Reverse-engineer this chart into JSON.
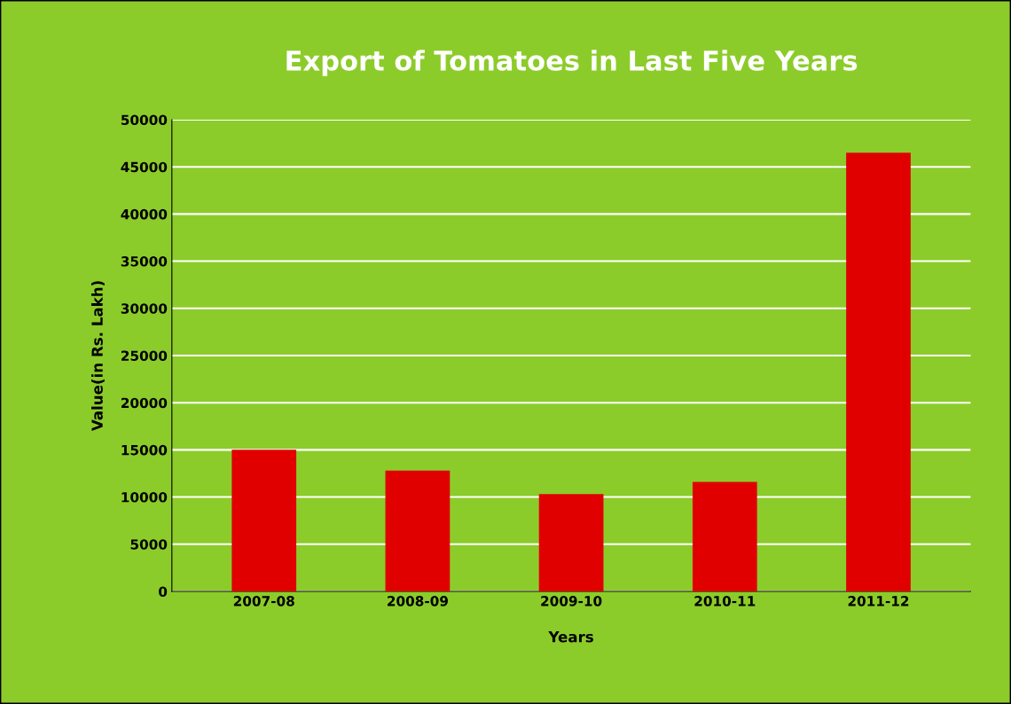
{
  "chart_data": {
    "type": "bar",
    "title": "Export of Tomatoes in Last Five Years",
    "xlabel": "Years",
    "ylabel": "Value(in Rs. Lakh)",
    "categories": [
      "2007-08",
      "2008-09",
      "2009-10",
      "2010-11",
      "2011-12"
    ],
    "values": [
      15000,
      12800,
      10300,
      11600,
      46500
    ],
    "color": "#e00000",
    "ylim": [
      0,
      50000
    ],
    "yticks": [
      0,
      5000,
      10000,
      15000,
      20000,
      25000,
      30000,
      35000,
      40000,
      45000,
      50000
    ],
    "grid": "y"
  }
}
